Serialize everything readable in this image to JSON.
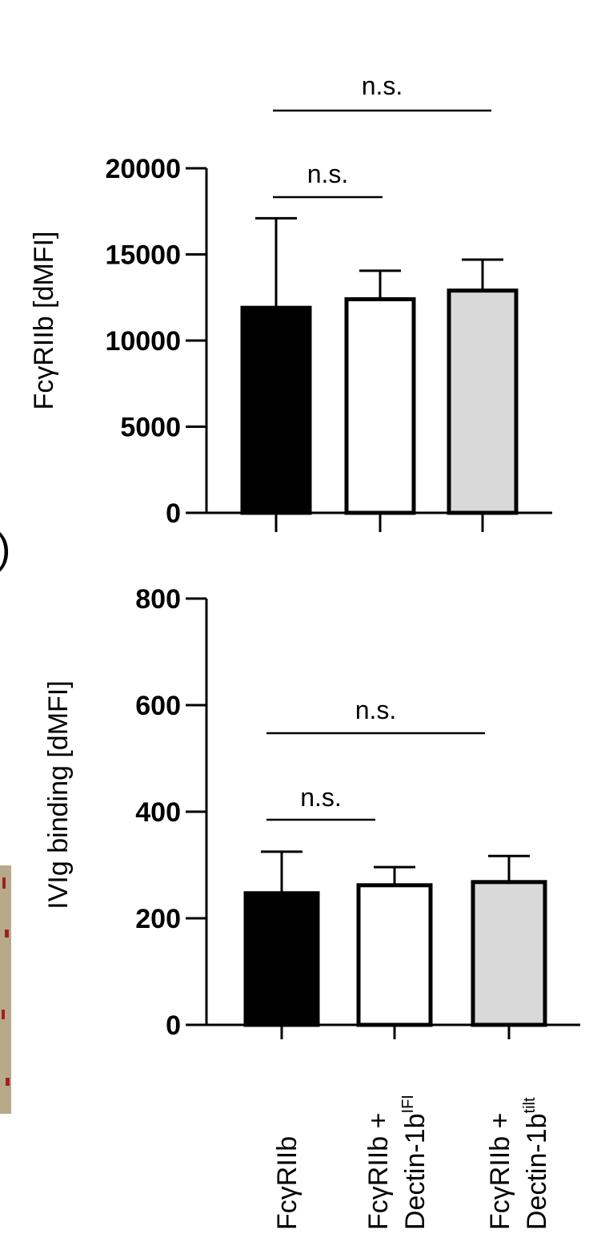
{
  "chart_data": [
    {
      "type": "bar",
      "categories": [
        "FcγRIIb",
        "FcγRIIb + Dectin-1bIFI",
        "FcγRIIb + Dectin-1btilt"
      ],
      "values": [
        11900,
        12400,
        12900
      ],
      "error": [
        5200,
        1650,
        1800
      ],
      "colors": [
        "#000000",
        "#ffffff",
        "#d9d9d9"
      ],
      "ylabel": "FcγRIIb [dMFI]",
      "ylim": [
        0,
        20000
      ],
      "yticks": [
        "0",
        "5000",
        "10000",
        "15000",
        "20000"
      ],
      "yticks_values": [
        0,
        5000,
        10000,
        15000,
        20000
      ],
      "significance": [
        {
          "from": 0,
          "to": 1,
          "label": "n.s."
        },
        {
          "from": 0,
          "to": 2,
          "label": "n.s."
        }
      ],
      "grid": false
    },
    {
      "type": "bar",
      "categories": [
        "FcγRIIb",
        "FcγRIIb + Dectin-1bIFI",
        "FcγRIIb + Dectin-1btilt"
      ],
      "values": [
        247,
        262,
        268
      ],
      "error": [
        78,
        34,
        49
      ],
      "colors": [
        "#000000",
        "#ffffff",
        "#d9d9d9"
      ],
      "ylabel": "IVIg binding [dMFI]",
      "ylim": [
        0,
        800
      ],
      "yticks": [
        "0",
        "200",
        "400",
        "600",
        "800"
      ],
      "yticks_values": [
        0,
        200,
        400,
        600,
        800
      ],
      "significance": [
        {
          "from": 0,
          "to": 1,
          "label": "n.s."
        },
        {
          "from": 0,
          "to": 2,
          "label": "n.s."
        }
      ],
      "grid": false
    }
  ],
  "xlabels": {
    "c1": {
      "line1": "FcγRIIb"
    },
    "c2": {
      "line1": "FcγRIIb +",
      "line2": "Dectin-1b",
      "sup": "IFI"
    },
    "c3": {
      "line1": "FcγRIIb +",
      "line2": "Dectin-1b",
      "sup": "tilt"
    }
  },
  "panel_fragment": ")"
}
